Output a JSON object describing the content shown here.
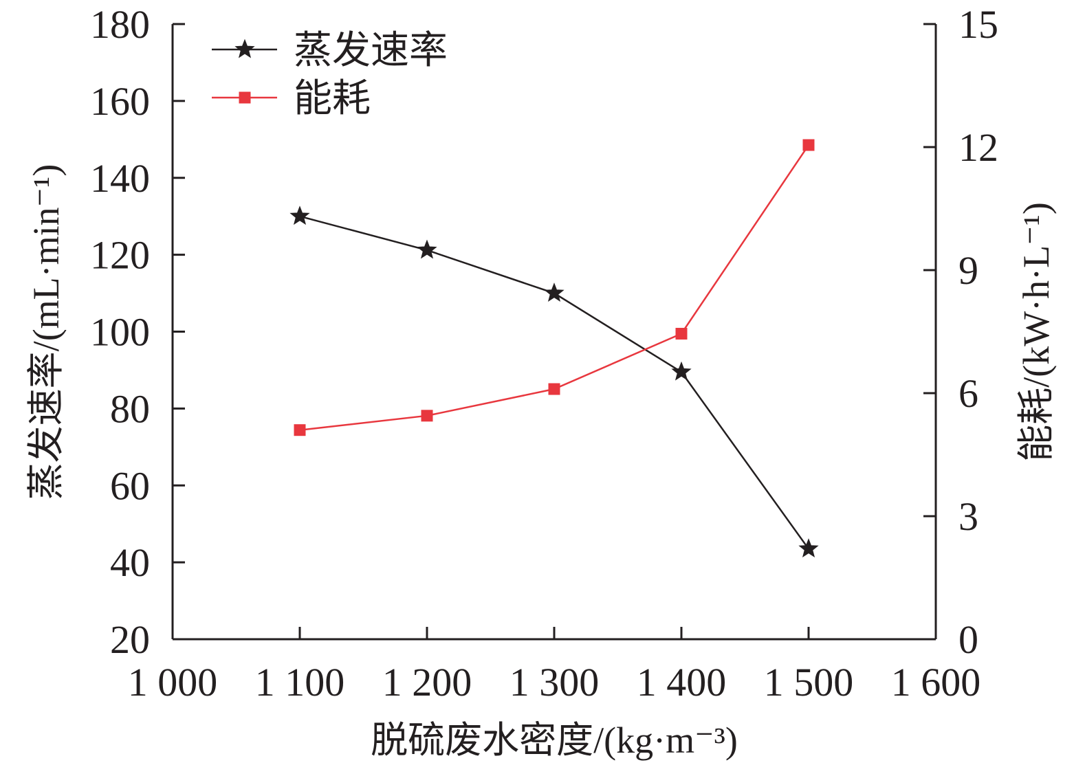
{
  "chart_data": {
    "type": "line",
    "x": [
      1100,
      1200,
      1300,
      1400,
      1500
    ],
    "xlim": [
      1000,
      1600
    ],
    "xticks": [
      1000,
      1100,
      1200,
      1300,
      1400,
      1500,
      1600
    ],
    "xtick_labels": [
      "1 000",
      "1 100",
      "1 200",
      "1 300",
      "1 400",
      "1 500",
      "1 600"
    ],
    "xlabel": "脱硫废水密度/(kg·m⁻³)",
    "y_left": {
      "label": "蒸发速率/(mL·min⁻¹)",
      "lim": [
        20,
        180
      ],
      "ticks": [
        20,
        40,
        60,
        80,
        100,
        120,
        140,
        160,
        180
      ]
    },
    "y_right": {
      "label": "能耗/(kW·h·L⁻¹)",
      "lim": [
        0,
        15
      ],
      "ticks": [
        0,
        3,
        6,
        9,
        12,
        15
      ]
    },
    "series": [
      {
        "name": "蒸发速率",
        "axis": "left",
        "color": "#231f20",
        "marker": "star",
        "values": [
          130,
          121.2,
          110,
          89.5,
          43.5
        ]
      },
      {
        "name": "能耗",
        "axis": "right",
        "color": "#e8373e",
        "marker": "square",
        "values": [
          5.1,
          5.45,
          6.1,
          7.45,
          12.05
        ]
      }
    ],
    "legend": {
      "position": "top-left"
    },
    "grid": false
  }
}
